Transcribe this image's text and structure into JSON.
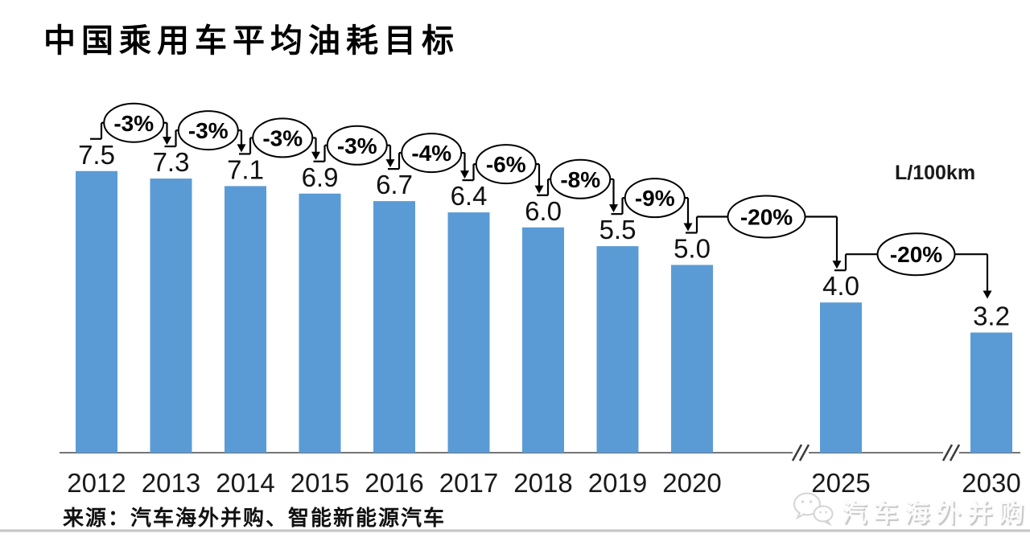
{
  "page": {
    "title": "中国乘用车平均油耗目标",
    "unit_label": "L/100km",
    "source": "来源：汽车海外并购、智能新能源汽车",
    "watermark_text": "汽车海外并购",
    "watermark_icon": "wechat-icon"
  },
  "chart_data": {
    "type": "bar",
    "title": "中国乘用车平均油耗目标",
    "ylabel": "L/100km",
    "xlabel": "",
    "categories": [
      "2012",
      "2013",
      "2014",
      "2015",
      "2016",
      "2017",
      "2018",
      "2019",
      "2020",
      "2025",
      "2030"
    ],
    "values": [
      7.5,
      7.3,
      7.1,
      6.9,
      6.7,
      6.4,
      6.0,
      5.5,
      5.0,
      4.0,
      3.2
    ],
    "value_labels": [
      "7.5",
      "7.3",
      "7.1",
      "6.9",
      "6.7",
      "6.4",
      "6.0",
      "5.5",
      "5.0",
      "4.0",
      "3.2"
    ],
    "change_labels": [
      "-3%",
      "-3%",
      "-3%",
      "-3%",
      "-4%",
      "-6%",
      "-8%",
      "-9%",
      "-20%",
      "-20%"
    ],
    "axis_breaks_before": [
      "2025",
      "2030"
    ],
    "bar_color": "#5B9BD5",
    "axis_color": "#757575",
    "connector_color": "#000000",
    "ylim": [
      0,
      8
    ],
    "grid": false,
    "legend": false,
    "value_labels_shown": true,
    "source": "来源：汽车海外并购、智能新能源汽车"
  }
}
